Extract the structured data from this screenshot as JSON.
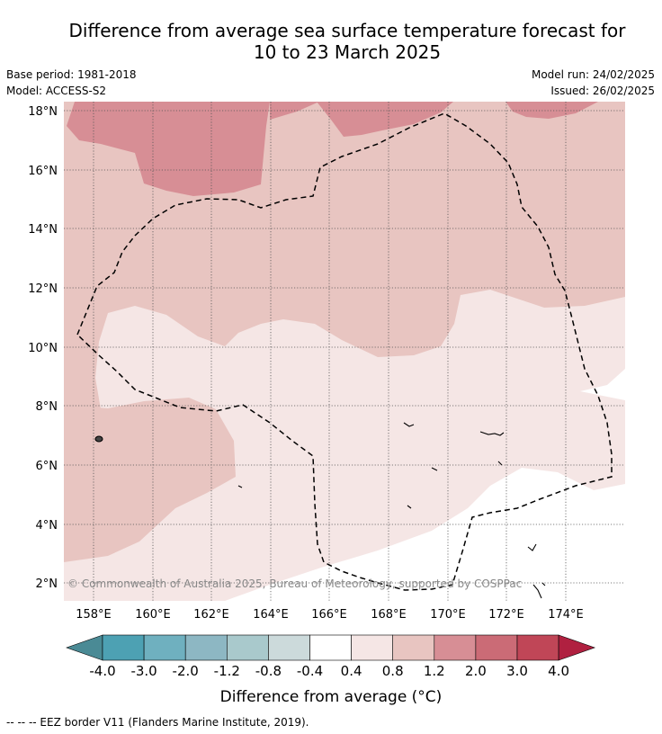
{
  "header": {
    "title_line1": "Difference from average sea surface temperature forecast for",
    "title_line2": "10 to 23 March 2025",
    "base_period": "Base period: 1981-2018",
    "model": "Model: ACCESS-S2",
    "model_run": "Model run: 24/02/2025",
    "issued": "Issued: 26/02/2025"
  },
  "map": {
    "x_ticks": [
      "158°E",
      "160°E",
      "162°E",
      "164°E",
      "166°E",
      "168°E",
      "170°E",
      "172°E",
      "174°E"
    ],
    "y_ticks": [
      "18°N",
      "16°N",
      "14°N",
      "12°N",
      "10°N",
      "8°N",
      "6°N",
      "4°N",
      "2°N"
    ],
    "copyright": "© Commonwealth of Australia 2025, Bureau of Meteorology, supported by COSPPac",
    "overlay": "EEZ border (dashed)"
  },
  "colorbar": {
    "labels": [
      "-4.0",
      "-3.0",
      "-2.0",
      "-1.2",
      "-0.8",
      "-0.4",
      "0.4",
      "0.8",
      "1.2",
      "2.0",
      "3.0",
      "4.0"
    ],
    "colors": [
      "#4a8a95",
      "#4da1b3",
      "#6fb0bf",
      "#8db7c3",
      "#a9c9cc",
      "#ccdadb",
      "#ffffff",
      "#f5e6e5",
      "#e8c5c1",
      "#d78e95",
      "#cb6b76",
      "#c04657",
      "#b02040"
    ],
    "title": "Difference from average (°C)"
  },
  "footer": {
    "legend": "--  --  -- EEZ border V11 (Flanders Marine Institute, 2019)."
  }
}
